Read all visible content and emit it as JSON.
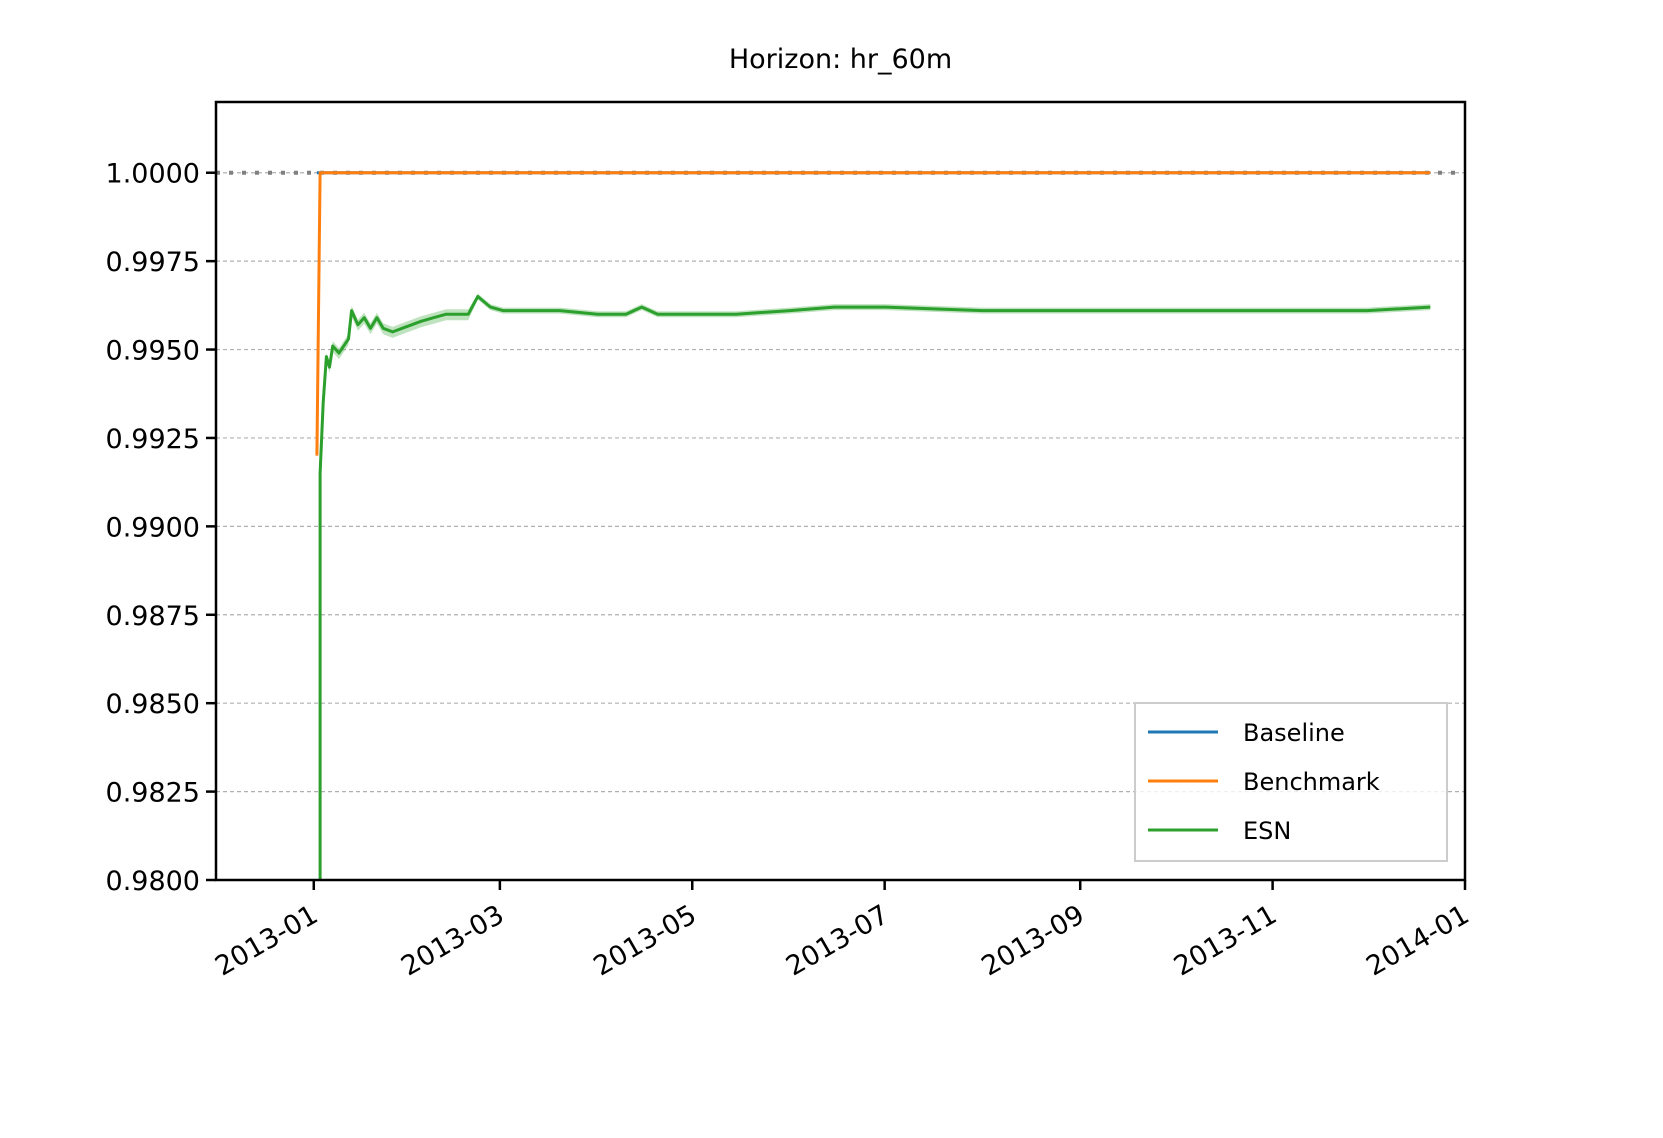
{
  "chart_data": {
    "type": "line",
    "title": "Horizon: hr_60m",
    "xlabel": "",
    "ylabel": "",
    "x_axis": {
      "type": "date",
      "range": [
        "2012-12-01",
        "2014-01-01"
      ],
      "ticks": [
        "2013-01-01",
        "2013-03-01",
        "2013-05-01",
        "2013-07-01",
        "2013-09-01",
        "2013-11-01",
        "2014-01-01"
      ],
      "tick_labels": [
        "2013-01",
        "2013-03",
        "2013-05",
        "2013-07",
        "2013-09",
        "2013-11",
        "2014-01"
      ]
    },
    "y_axis": {
      "range": [
        0.98,
        1.002
      ],
      "ticks": [
        0.98,
        0.9825,
        0.985,
        0.9875,
        0.99,
        0.9925,
        0.995,
        0.9975,
        1.0
      ],
      "tick_labels": [
        "0.9800",
        "0.9825",
        "0.9850",
        "0.9875",
        "0.9900",
        "0.9925",
        "0.9950",
        "0.9975",
        "1.0000"
      ]
    },
    "grid": "horizontal dashed",
    "reference_line": {
      "y": 1.0,
      "style": "dotted",
      "color": "#808080"
    },
    "legend": {
      "placement": "lower-right",
      "entries": [
        "Baseline",
        "Benchmark",
        "ESN"
      ]
    },
    "series": [
      {
        "name": "Baseline",
        "color": "#1f77b4",
        "points": [
          [
            "2013-01-02",
            1.0
          ],
          [
            "2013-12-21",
            1.0
          ]
        ]
      },
      {
        "name": "Benchmark",
        "color": "#ff7f0e",
        "points": [
          [
            "2013-01-02",
            0.992
          ],
          [
            "2013-01-03",
            1.0
          ],
          [
            "2013-12-21",
            1.0
          ]
        ]
      },
      {
        "name": "ESN",
        "color": "#2ca02c",
        "band": true,
        "points": [
          [
            "2013-01-03",
            0.98
          ],
          [
            "2013-01-03",
            0.9915
          ],
          [
            "2013-01-04",
            0.9935
          ],
          [
            "2013-01-05",
            0.9948
          ],
          [
            "2013-01-06",
            0.9945
          ],
          [
            "2013-01-07",
            0.9951
          ],
          [
            "2013-01-09",
            0.9949
          ],
          [
            "2013-01-12",
            0.9953
          ],
          [
            "2013-01-13",
            0.9961
          ],
          [
            "2013-01-15",
            0.9957
          ],
          [
            "2013-01-17",
            0.9959
          ],
          [
            "2013-01-19",
            0.9956
          ],
          [
            "2013-01-21",
            0.9959
          ],
          [
            "2013-01-23",
            0.9956
          ],
          [
            "2013-01-26",
            0.9955
          ],
          [
            "2013-01-29",
            0.9956
          ],
          [
            "2013-02-01",
            0.9957
          ],
          [
            "2013-02-04",
            0.9958
          ],
          [
            "2013-02-08",
            0.9959
          ],
          [
            "2013-02-12",
            0.996
          ],
          [
            "2013-02-16",
            0.996
          ],
          [
            "2013-02-19",
            0.996
          ],
          [
            "2013-02-22",
            0.9965
          ],
          [
            "2013-02-26",
            0.9962
          ],
          [
            "2013-03-02",
            0.9961
          ],
          [
            "2013-03-10",
            0.9961
          ],
          [
            "2013-03-20",
            0.9961
          ],
          [
            "2013-04-01",
            0.996
          ],
          [
            "2013-04-10",
            0.996
          ],
          [
            "2013-04-15",
            0.9962
          ],
          [
            "2013-04-20",
            0.996
          ],
          [
            "2013-05-01",
            0.996
          ],
          [
            "2013-05-15",
            0.996
          ],
          [
            "2013-06-01",
            0.9961
          ],
          [
            "2013-06-15",
            0.9962
          ],
          [
            "2013-07-01",
            0.9962
          ],
          [
            "2013-08-01",
            0.9961
          ],
          [
            "2013-09-01",
            0.9961
          ],
          [
            "2013-10-01",
            0.9961
          ],
          [
            "2013-11-01",
            0.9961
          ],
          [
            "2013-12-01",
            0.9961
          ],
          [
            "2013-12-21",
            0.9962
          ]
        ]
      }
    ]
  }
}
